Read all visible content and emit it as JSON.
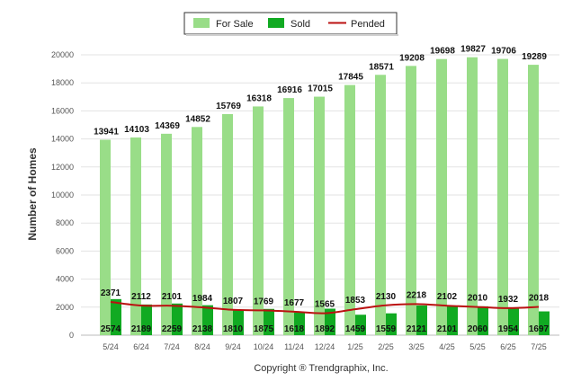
{
  "chart_data": {
    "type": "bar",
    "ylabel": "Number of Homes",
    "ylim": [
      0,
      20000
    ],
    "yticks": [
      0,
      2000,
      4000,
      6000,
      8000,
      10000,
      12000,
      14000,
      16000,
      18000,
      20000
    ],
    "grid": true,
    "legend_position": "top-center",
    "categories": [
      "5/24",
      "6/24",
      "7/24",
      "8/24",
      "9/24",
      "10/24",
      "11/24",
      "12/24",
      "1/25",
      "2/25",
      "3/25",
      "4/25",
      "5/25",
      "6/25",
      "7/25"
    ],
    "series": [
      {
        "name": "For Sale",
        "type": "bar",
        "color": "#99dd88",
        "values": [
          13941,
          14103,
          14369,
          14852,
          15769,
          16318,
          16916,
          17015,
          17845,
          18571,
          19208,
          19698,
          19827,
          19706,
          19289
        ]
      },
      {
        "name": "Sold",
        "type": "bar",
        "color": "#11aa22",
        "values": [
          2574,
          2189,
          2259,
          2138,
          1810,
          1875,
          1618,
          1892,
          1459,
          1559,
          2121,
          2101,
          2060,
          1954,
          1697
        ]
      },
      {
        "name": "Pended",
        "type": "line",
        "color": "#bb1111",
        "values": [
          2371,
          2112,
          2101,
          1984,
          1807,
          1769,
          1677,
          1565,
          1853,
          2130,
          2218,
          2102,
          2010,
          1932,
          2018
        ]
      }
    ]
  },
  "legend": {
    "for_sale": "For Sale",
    "sold": "Sold",
    "pended": "Pended"
  },
  "footer": {
    "copyright": "Copyright ® Trendgraphix, Inc."
  }
}
